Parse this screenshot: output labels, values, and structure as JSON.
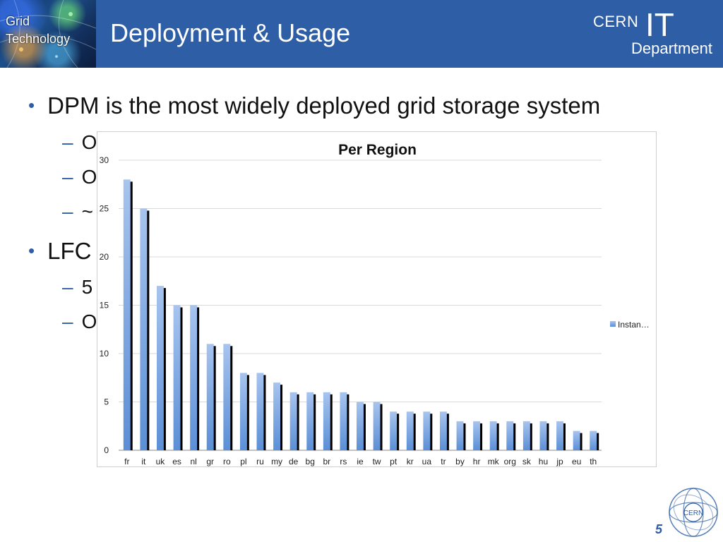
{
  "header": {
    "logo_text_line1": "Grid",
    "logo_text_line2": "Technology",
    "title": "Deployment & Usage",
    "brand_cern": "CERN",
    "brand_it": "IT",
    "brand_department": "Department",
    "background_color": "#2e5ea6"
  },
  "bullets": [
    {
      "text": "DPM is the most widely deployed grid storage system",
      "subs": [
        "O",
        "O",
        "~"
      ]
    },
    {
      "text": "LFC",
      "subs": [
        "5",
        "O"
      ]
    }
  ],
  "footer": {
    "page_number": "5",
    "seal_text": "CERN"
  },
  "chart_data": {
    "type": "bar",
    "title": "Per Region",
    "categories": [
      "fr",
      "it",
      "uk",
      "es",
      "nl",
      "gr",
      "ro",
      "pl",
      "ru",
      "my",
      "de",
      "bg",
      "br",
      "rs",
      "ie",
      "tw",
      "pt",
      "kr",
      "ua",
      "tr",
      "by",
      "hr",
      "mk",
      "org",
      "sk",
      "hu",
      "jp",
      "eu",
      "th"
    ],
    "series": [
      {
        "name": "Instan…",
        "values": [
          28,
          25,
          17,
          15,
          15,
          11,
          11,
          8,
          8,
          7,
          6,
          6,
          6,
          6,
          5,
          5,
          4,
          4,
          4,
          4,
          3,
          3,
          3,
          3,
          3,
          3,
          3,
          2,
          2
        ]
      }
    ],
    "ylim": [
      0,
      30
    ],
    "yticks": [
      0,
      5,
      10,
      15,
      20,
      25,
      30
    ],
    "xlabel": "",
    "ylabel": "",
    "grid": true,
    "legend_position": "right",
    "bar_color": "#5b8fd6",
    "shadow_color": "#000000"
  }
}
